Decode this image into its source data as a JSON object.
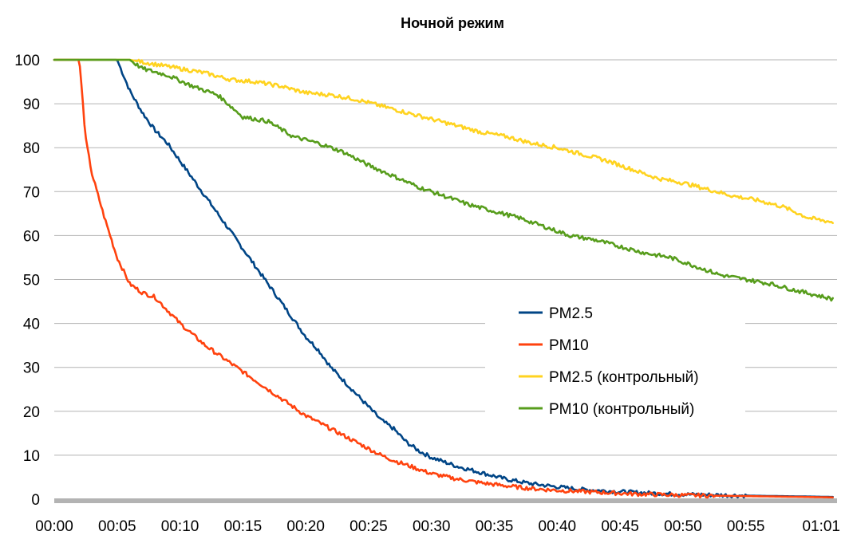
{
  "chart_data": {
    "type": "line",
    "title": "Ночной режим",
    "xlabel": "",
    "ylabel": "",
    "ylim": [
      0,
      100
    ],
    "xlim": [
      "00:00",
      "01:02"
    ],
    "y_ticks": [
      "0",
      "10",
      "20",
      "30",
      "40",
      "50",
      "60",
      "70",
      "80",
      "90",
      "100"
    ],
    "x_ticks": [
      "00:00",
      "00:05",
      "00:10",
      "00:15",
      "00:20",
      "00:25",
      "00:30",
      "00:35",
      "00:40",
      "00:45",
      "00:50",
      "00:55",
      "01:01"
    ],
    "grid": true,
    "legend_position": "right",
    "series": [
      {
        "name": "PM2.5",
        "color": "#004586",
        "points": [
          [
            "00:00",
            100
          ],
          [
            "00:05",
            100
          ],
          [
            "00:06",
            93
          ],
          [
            "00:07",
            88
          ],
          [
            "00:08",
            84
          ],
          [
            "00:09",
            81
          ],
          [
            "00:10",
            77
          ],
          [
            "00:11",
            73
          ],
          [
            "00:12",
            69
          ],
          [
            "00:13",
            65
          ],
          [
            "00:14",
            61
          ],
          [
            "00:15",
            57
          ],
          [
            "00:16",
            53
          ],
          [
            "00:17",
            49
          ],
          [
            "00:18",
            45
          ],
          [
            "00:19",
            41
          ],
          [
            "00:20",
            37
          ],
          [
            "00:21",
            34
          ],
          [
            "00:22",
            30
          ],
          [
            "00:23",
            27
          ],
          [
            "00:24",
            24
          ],
          [
            "00:25",
            21
          ],
          [
            "00:26",
            18
          ],
          [
            "00:27",
            16
          ],
          [
            "00:28",
            13
          ],
          [
            "00:29",
            11
          ],
          [
            "00:30",
            9.5
          ],
          [
            "00:32",
            7.5
          ],
          [
            "00:34",
            6
          ],
          [
            "00:36",
            4.5
          ],
          [
            "00:38",
            3.5
          ],
          [
            "00:40",
            2.8
          ],
          [
            "00:42",
            2.2
          ],
          [
            "00:45",
            1.7
          ],
          [
            "00:48",
            1.3
          ],
          [
            "00:50",
            1.1
          ],
          [
            "00:55",
            0.8
          ],
          [
            "01:00",
            0.6
          ],
          [
            "01:02",
            0.5
          ]
        ]
      },
      {
        "name": "PM10",
        "color": "#ff420e",
        "points": [
          [
            "00:00",
            100
          ],
          [
            "00:02",
            100
          ],
          [
            "00:02:30",
            82
          ],
          [
            "00:03",
            74
          ],
          [
            "00:04",
            64
          ],
          [
            "00:05",
            55
          ],
          [
            "00:06",
            49
          ],
          [
            "00:07",
            47
          ],
          [
            "00:08",
            46
          ],
          [
            "00:09",
            43
          ],
          [
            "00:10",
            40
          ],
          [
            "00:11",
            37.5
          ],
          [
            "00:12",
            35
          ],
          [
            "00:13",
            33
          ],
          [
            "00:14",
            31
          ],
          [
            "00:15",
            29
          ],
          [
            "00:16",
            27
          ],
          [
            "00:17",
            25
          ],
          [
            "00:18",
            23
          ],
          [
            "00:19",
            21
          ],
          [
            "00:20",
            19
          ],
          [
            "00:21",
            17.5
          ],
          [
            "00:22",
            16
          ],
          [
            "00:23",
            14.5
          ],
          [
            "00:24",
            13
          ],
          [
            "00:25",
            11.5
          ],
          [
            "00:26",
            10
          ],
          [
            "00:27",
            8.8
          ],
          [
            "00:28",
            7.8
          ],
          [
            "00:29",
            6.8
          ],
          [
            "00:30",
            5.8
          ],
          [
            "00:32",
            4.6
          ],
          [
            "00:34",
            3.7
          ],
          [
            "00:36",
            3
          ],
          [
            "00:38",
            2.4
          ],
          [
            "00:40",
            2
          ],
          [
            "00:43",
            1.6
          ],
          [
            "00:46",
            1.2
          ],
          [
            "00:50",
            0.9
          ],
          [
            "00:55",
            0.7
          ],
          [
            "01:00",
            0.5
          ],
          [
            "01:02",
            0.4
          ]
        ]
      },
      {
        "name": "PM2.5 (контрольный)",
        "color": "#ffd320",
        "points": [
          [
            "00:00",
            100
          ],
          [
            "00:06",
            100
          ],
          [
            "00:08",
            99
          ],
          [
            "00:10",
            98
          ],
          [
            "00:12",
            97
          ],
          [
            "00:14",
            95.5
          ],
          [
            "00:16",
            95
          ],
          [
            "00:18",
            94
          ],
          [
            "00:20",
            92.5
          ],
          [
            "00:22",
            92
          ],
          [
            "00:24",
            91
          ],
          [
            "00:26",
            89.5
          ],
          [
            "00:28",
            88
          ],
          [
            "00:30",
            86.5
          ],
          [
            "00:32",
            85
          ],
          [
            "00:34",
            83.5
          ],
          [
            "00:36",
            82.5
          ],
          [
            "00:38",
            81
          ],
          [
            "00:40",
            80
          ],
          [
            "00:42",
            78.5
          ],
          [
            "00:44",
            77
          ],
          [
            "00:46",
            75
          ],
          [
            "00:48",
            73
          ],
          [
            "00:50",
            72
          ],
          [
            "00:52",
            70.5
          ],
          [
            "00:54",
            69
          ],
          [
            "00:56",
            68
          ],
          [
            "00:58",
            66.5
          ],
          [
            "01:00",
            64
          ],
          [
            "01:02",
            63
          ]
        ]
      },
      {
        "name": "PM10 (контрольный)",
        "color": "#579d1c",
        "points": [
          [
            "00:00",
            100
          ],
          [
            "00:06",
            100
          ],
          [
            "00:07",
            98
          ],
          [
            "00:09",
            96.5
          ],
          [
            "00:11",
            94
          ],
          [
            "00:13",
            92
          ],
          [
            "00:15",
            87
          ],
          [
            "00:17",
            86
          ],
          [
            "00:19",
            82.5
          ],
          [
            "00:21",
            81
          ],
          [
            "00:23",
            79
          ],
          [
            "00:25",
            76
          ],
          [
            "00:27",
            73.5
          ],
          [
            "00:29",
            71
          ],
          [
            "00:31",
            69
          ],
          [
            "00:33",
            67
          ],
          [
            "00:35",
            65.5
          ],
          [
            "00:37",
            64
          ],
          [
            "00:39",
            62
          ],
          [
            "00:41",
            60
          ],
          [
            "00:43",
            59
          ],
          [
            "00:45",
            57.5
          ],
          [
            "00:47",
            56
          ],
          [
            "00:49",
            55
          ],
          [
            "00:51",
            53
          ],
          [
            "00:53",
            51
          ],
          [
            "00:55",
            50
          ],
          [
            "00:57",
            49
          ],
          [
            "00:59",
            47.5
          ],
          [
            "01:02",
            45.5
          ]
        ]
      }
    ]
  }
}
